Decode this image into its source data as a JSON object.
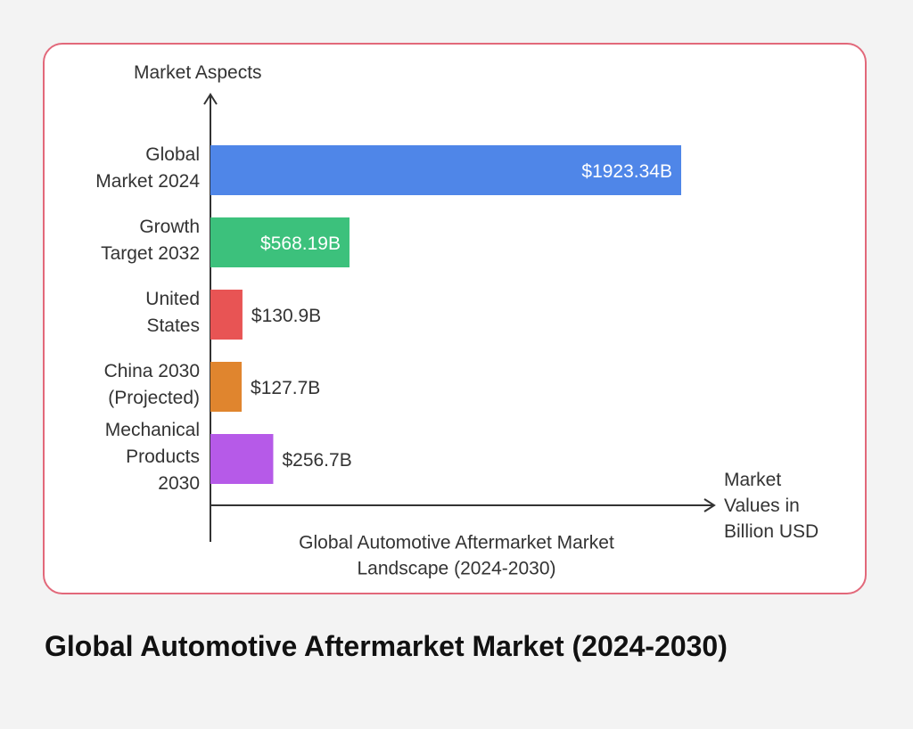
{
  "page": {
    "title": "Global Automotive Aftermarket Market (2024-2030)"
  },
  "chart_data": {
    "type": "bar",
    "orientation": "horizontal",
    "ylabel": "Market Aspects",
    "xlabel": "Market Values in Billion USD",
    "caption": "Global Automotive Aftermarket Market Landscape (2024-2030)",
    "categories": [
      "Global Market 2024",
      "Growth Target 2032",
      "United States",
      "China 2030 (Projected)",
      "Mechanical Products 2030"
    ],
    "values": [
      1923.34,
      568.19,
      130.9,
      127.7,
      256.7
    ],
    "value_labels": [
      "$1923.34B",
      "$568.19B",
      "$130.9B",
      "$127.7B",
      "$256.7B"
    ],
    "colors": [
      "#4f86e8",
      "#3cc17c",
      "#e85454",
      "#e0852e",
      "#b65ae8"
    ],
    "grid": false,
    "legend": "none"
  }
}
